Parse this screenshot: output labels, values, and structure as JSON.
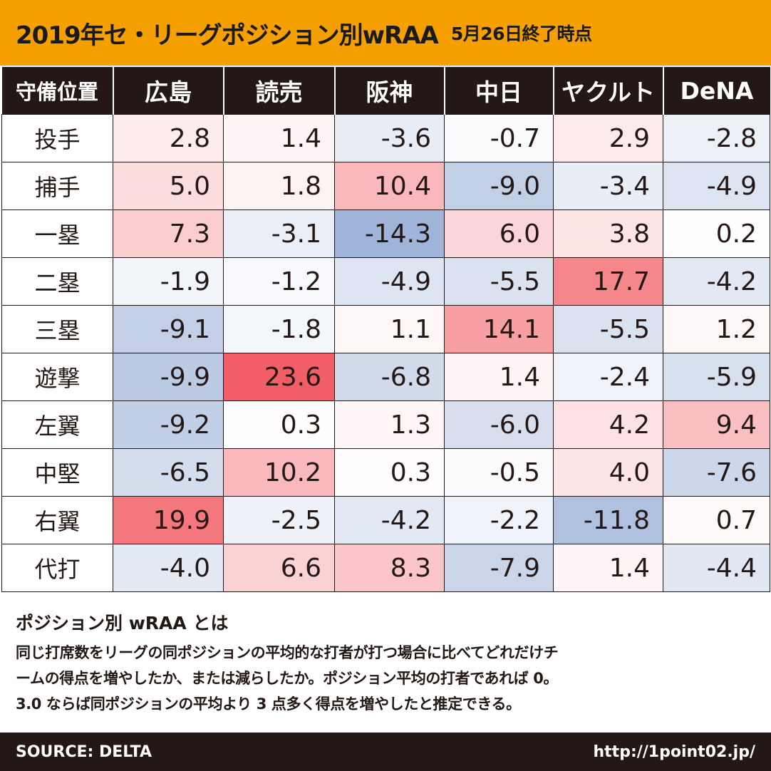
{
  "header": {
    "title": "2019年セ・リーグポジション別wRAA",
    "subtitle": "5月26日終了時点",
    "background_color": "#f5a000"
  },
  "chart_data": {
    "type": "heatmap",
    "title": "2019年セ・リーグポジション別wRAA",
    "subtitle": "5月26日終了時点",
    "corner_label": "守備位置",
    "columns": [
      "広島",
      "読売",
      "阪神",
      "中日",
      "ヤクルト",
      "DeNA"
    ],
    "rows": [
      {
        "position": "投手",
        "values": [
          2.8,
          1.4,
          -3.6,
          -0.7,
          2.9,
          -2.8
        ]
      },
      {
        "position": "捕手",
        "values": [
          5.0,
          1.8,
          10.4,
          -9.0,
          -3.4,
          -4.9
        ]
      },
      {
        "position": "一塁",
        "values": [
          7.3,
          -3.1,
          -14.3,
          6.0,
          3.8,
          0.2
        ]
      },
      {
        "position": "二塁",
        "values": [
          -1.9,
          -1.2,
          -4.9,
          -5.5,
          17.7,
          -4.2
        ]
      },
      {
        "position": "三塁",
        "values": [
          -9.1,
          -1.8,
          1.1,
          14.1,
          -5.5,
          1.2
        ]
      },
      {
        "position": "遊撃",
        "values": [
          -9.9,
          23.6,
          -6.8,
          1.4,
          -2.4,
          -5.9
        ]
      },
      {
        "position": "左翼",
        "values": [
          -9.2,
          0.3,
          1.3,
          -6.0,
          4.2,
          9.4
        ]
      },
      {
        "position": "中堅",
        "values": [
          -6.5,
          10.2,
          0.3,
          -0.5,
          4.0,
          -7.6
        ]
      },
      {
        "position": "右翼",
        "values": [
          19.9,
          -2.5,
          -4.2,
          -2.2,
          -11.8,
          0.7
        ]
      },
      {
        "position": "代打",
        "values": [
          -4.0,
          6.6,
          8.3,
          -7.9,
          1.4,
          -4.4
        ]
      }
    ],
    "color_scale": {
      "negative_color": "#9ab0d6",
      "neutral_color": "#ffffff",
      "positive_color": "#f0545c",
      "min": -15,
      "max": 25
    }
  },
  "notes": {
    "heading": "ポジション別 wRAA とは",
    "body_lines": [
      "同じ打席数をリーグの同ポジションの平均的な打者が打つ場合に比べてどれだけチ",
      "ームの得点を増やしたか、または減らしたか。ポジション平均の打者であれば 0。",
      "3.0 ならば同ポジションの平均より 3 点多く得点を増やしたと推定できる。"
    ]
  },
  "footer": {
    "source": "SOURCE: DELTA",
    "url": "http://1point02.jp/"
  }
}
